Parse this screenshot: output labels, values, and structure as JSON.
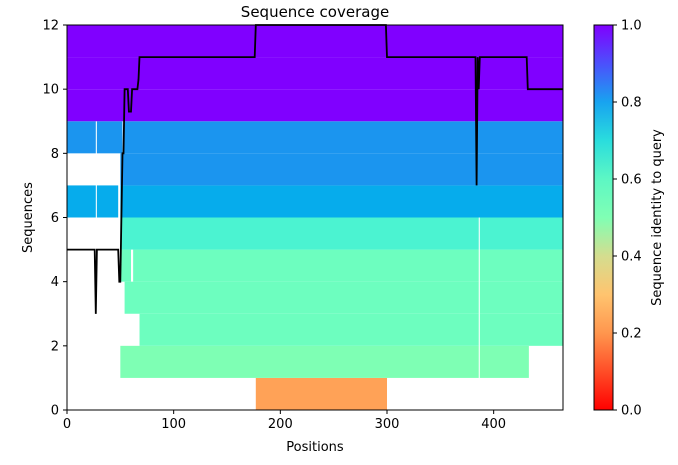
{
  "chart_data": {
    "type": "heatmap",
    "title": "Sequence coverage",
    "xlabel": "Positions",
    "ylabel": "Sequences",
    "xlim": [
      0,
      465
    ],
    "ylim": [
      0,
      12
    ],
    "xticks": [
      0,
      100,
      200,
      300,
      400
    ],
    "yticks": [
      0,
      2,
      4,
      6,
      8,
      10,
      12
    ],
    "grid": false,
    "colorbar": {
      "label": "Sequence identity to query",
      "colormap": "rainbow",
      "range": [
        0,
        1
      ],
      "ticks": [
        0.0,
        0.2,
        0.4,
        0.6,
        0.8,
        1.0
      ]
    },
    "rows": [
      {
        "row": 0,
        "identity": 0.25,
        "color": "#ffa257",
        "segments": [
          [
            177,
            300
          ]
        ]
      },
      {
        "row": 1,
        "identity": 0.55,
        "color": "#7effb4",
        "segments": [
          [
            50,
            386
          ],
          [
            387,
            433
          ]
        ]
      },
      {
        "row": 2,
        "identity": 0.58,
        "color": "#6dfebf",
        "segments": [
          [
            68,
            386
          ],
          [
            387,
            465
          ]
        ]
      },
      {
        "row": 3,
        "identity": 0.58,
        "color": "#6dfebf",
        "segments": [
          [
            54,
            386
          ],
          [
            387,
            465
          ]
        ]
      },
      {
        "row": 4,
        "identity": 0.58,
        "color": "#6dfebf",
        "segments": [
          [
            50,
            60
          ],
          [
            62,
            386
          ],
          [
            387,
            465
          ]
        ]
      },
      {
        "row": 5,
        "identity": 0.65,
        "color": "#4bf3d1",
        "segments": [
          [
            50,
            386
          ],
          [
            387,
            465
          ]
        ]
      },
      {
        "row": 6,
        "identity": 0.79,
        "color": "#06acec",
        "segments": [
          [
            0,
            27
          ],
          [
            28,
            48
          ],
          [
            50,
            465
          ]
        ]
      },
      {
        "row": 7,
        "identity": 0.84,
        "color": "#1b95ef",
        "segments": [
          [
            50,
            465
          ]
        ]
      },
      {
        "row": 8,
        "identity": 0.84,
        "color": "#1b95ef",
        "segments": [
          [
            0,
            27
          ],
          [
            28,
            52
          ],
          [
            53,
            465
          ]
        ]
      },
      {
        "row": 9,
        "identity": 1.0,
        "color": "#8000ff",
        "segments": [
          [
            0,
            465
          ]
        ]
      },
      {
        "row": 10,
        "identity": 1.0,
        "color": "#8000ff",
        "segments": [
          [
            0,
            465
          ]
        ]
      },
      {
        "row": 11,
        "identity": 1.0,
        "color": "#8000ff",
        "segments": [
          [
            0,
            465
          ]
        ]
      }
    ],
    "series": [
      {
        "type": "line",
        "color": "#000000",
        "x": [
          0,
          26,
          27,
          28,
          48,
          49,
          50,
          52,
          53,
          54,
          56,
          57,
          58,
          59,
          60,
          61,
          62,
          64,
          65,
          66,
          67,
          68,
          175,
          176,
          177,
          178,
          296,
          297,
          298,
          299,
          300,
          383,
          384,
          385,
          386,
          387,
          388,
          430,
          431,
          432,
          433,
          465
        ],
        "y": [
          5,
          5,
          3,
          5,
          5,
          4,
          4,
          8,
          8,
          10,
          10,
          10,
          9.3,
          9.3,
          9.3,
          10,
          10,
          10,
          10,
          10,
          10.3,
          11,
          11,
          11,
          12,
          12,
          12,
          12,
          12,
          12,
          11,
          11,
          7,
          11,
          10,
          11,
          11,
          11,
          11,
          10,
          10,
          10
        ]
      }
    ]
  }
}
